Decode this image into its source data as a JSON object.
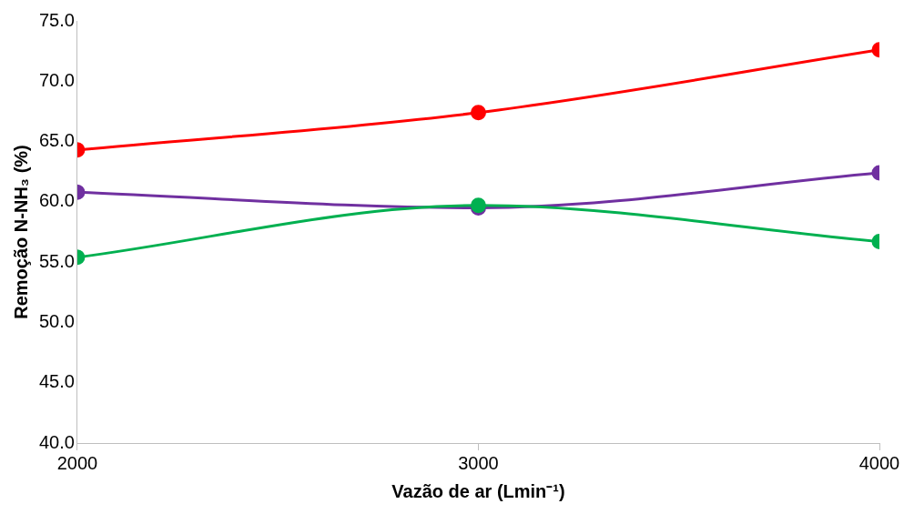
{
  "chart_data": {
    "type": "line",
    "xlabel": "Vazão de ar (Lmin⁻¹)",
    "ylabel": "Remoção N-NH₃ (%)",
    "x": [
      2000,
      3000,
      4000
    ],
    "series": [
      {
        "color": "#ff0000",
        "values": [
          64.3,
          67.4,
          72.6
        ]
      },
      {
        "color": "#7030a0",
        "values": [
          60.8,
          59.5,
          62.4
        ]
      },
      {
        "color": "#00b050",
        "values": [
          55.4,
          59.7,
          56.7
        ]
      }
    ],
    "xlim": [
      2000,
      4000
    ],
    "xticks": [
      2000,
      3000,
      4000
    ],
    "ylim": [
      40,
      75
    ],
    "yticks": [
      {
        "value": 40,
        "label": "40.0"
      },
      {
        "value": 45,
        "label": "45.0"
      },
      {
        "value": 50,
        "label": "50.0"
      },
      {
        "value": 55,
        "label": "55.0"
      },
      {
        "value": 60,
        "label": "60.0"
      },
      {
        "value": 65,
        "label": "65.0"
      },
      {
        "value": 70,
        "label": "70.0"
      },
      {
        "value": 75,
        "label": "75.0"
      }
    ],
    "grid": false,
    "legend": false,
    "marker": "circle",
    "line_style": "solid"
  }
}
